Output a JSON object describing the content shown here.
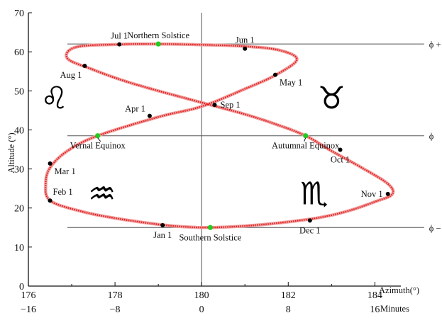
{
  "chart_data": {
    "type": "scatter",
    "xlabel": "Azimuth(°)",
    "ylabel": "Altitude (°)",
    "x2label": "Minutes",
    "xlim": [
      176,
      184.6
    ],
    "ylim": [
      0,
      70
    ],
    "x_ticks": [
      "176",
      "178",
      "180",
      "182",
      "184"
    ],
    "x2_ticks": [
      "−16",
      "−8",
      "0",
      "8",
      "16"
    ],
    "y_ticks": [
      "0",
      "10",
      "20",
      "30",
      "40",
      "50",
      "60",
      "70"
    ],
    "reference_lines": [
      {
        "label": "ϕ + ε",
        "y": 62
      },
      {
        "label": "ϕ",
        "y": 38.5
      },
      {
        "label": "ϕ − ε",
        "y": 15
      },
      {
        "label": "",
        "x": 180
      }
    ],
    "series": [
      {
        "closed": true,
        "color": "#e32020",
        "points": [
          [
            180.2,
            15.0
          ],
          [
            181.0,
            15.4
          ],
          [
            181.8,
            16.2
          ],
          [
            182.7,
            17.5
          ],
          [
            183.4,
            19.3
          ],
          [
            184.0,
            21.6
          ],
          [
            184.4,
            23.5
          ],
          [
            184.3,
            26.2
          ],
          [
            183.7,
            30.3
          ],
          [
            183.0,
            34.6
          ],
          [
            182.4,
            38.5
          ],
          [
            181.7,
            41.5
          ],
          [
            181.0,
            44.0
          ],
          [
            180.0,
            47.0
          ],
          [
            179.0,
            50.0
          ],
          [
            178.2,
            52.6
          ],
          [
            177.5,
            55.4
          ],
          [
            176.9,
            58.3
          ],
          [
            177.1,
            61.2
          ],
          [
            178.1,
            61.9
          ],
          [
            179.0,
            62.0
          ],
          [
            180.0,
            61.8
          ],
          [
            181.0,
            61.4
          ],
          [
            181.8,
            60.4
          ],
          [
            182.2,
            58.0
          ],
          [
            181.7,
            54.0
          ],
          [
            181.0,
            50.5
          ],
          [
            180.0,
            46.0
          ],
          [
            179.0,
            43.3
          ],
          [
            177.6,
            38.5
          ],
          [
            176.9,
            34.6
          ],
          [
            176.5,
            30.3
          ],
          [
            176.4,
            26.2
          ],
          [
            176.5,
            21.9
          ],
          [
            177.2,
            19.2
          ],
          [
            178.0,
            17.4
          ],
          [
            179.0,
            15.8
          ],
          [
            179.6,
            15.2
          ]
        ]
      }
    ],
    "markers": [
      {
        "label": "Jun 1",
        "x": 181.0,
        "y": 60.8,
        "color": "black",
        "anchor": "above"
      },
      {
        "label": "Jul 1",
        "x": 178.1,
        "y": 61.9,
        "color": "black",
        "anchor": "above"
      },
      {
        "label": "Aug 1",
        "x": 177.3,
        "y": 56.4,
        "color": "black",
        "anchor": "below-left"
      },
      {
        "label": "May 1",
        "x": 181.7,
        "y": 54.1,
        "color": "black",
        "anchor": "below-right"
      },
      {
        "label": "Apr 1",
        "x": 178.8,
        "y": 43.6,
        "color": "black",
        "anchor": "above-left"
      },
      {
        "label": "Sep 1",
        "x": 180.3,
        "y": 46.4,
        "color": "black",
        "anchor": "right"
      },
      {
        "label": "Oct 1",
        "x": 183.2,
        "y": 34.9,
        "color": "black",
        "anchor": "below"
      },
      {
        "label": "Mar 1",
        "x": 176.5,
        "y": 31.4,
        "color": "black",
        "anchor": "below-right"
      },
      {
        "label": "Feb 1",
        "x": 176.5,
        "y": 21.9,
        "color": "black",
        "anchor": "above-right"
      },
      {
        "label": "Nov 1",
        "x": 184.3,
        "y": 23.6,
        "color": "black",
        "anchor": "left"
      },
      {
        "label": "Dec 1",
        "x": 182.5,
        "y": 16.8,
        "color": "black",
        "anchor": "below"
      },
      {
        "label": "Jan 1",
        "x": 179.1,
        "y": 15.6,
        "color": "black",
        "anchor": "below"
      },
      {
        "label": "Northern Solstice",
        "x": 179.0,
        "y": 62.0,
        "color": "green",
        "anchor": "above"
      },
      {
        "label": "Southern Solstice",
        "x": 180.2,
        "y": 15.0,
        "color": "green",
        "anchor": "below"
      },
      {
        "label": "Vernal Equinox",
        "x": 177.6,
        "y": 38.5,
        "color": "green",
        "anchor": "below"
      },
      {
        "label": "Autumnal Equinox",
        "x": 182.4,
        "y": 38.5,
        "color": "green",
        "anchor": "below"
      }
    ],
    "zodiac_symbols": [
      {
        "glyph": "♌",
        "name": "leo",
        "x": 176.6,
        "y": 48
      },
      {
        "glyph": "♉",
        "name": "taurus",
        "x": 183.0,
        "y": 48
      },
      {
        "glyph": "♒",
        "name": "aquarius",
        "x": 177.7,
        "y": 23.5
      },
      {
        "glyph": "♏",
        "name": "scorpio",
        "x": 182.6,
        "y": 23.5
      }
    ],
    "grid": false
  }
}
